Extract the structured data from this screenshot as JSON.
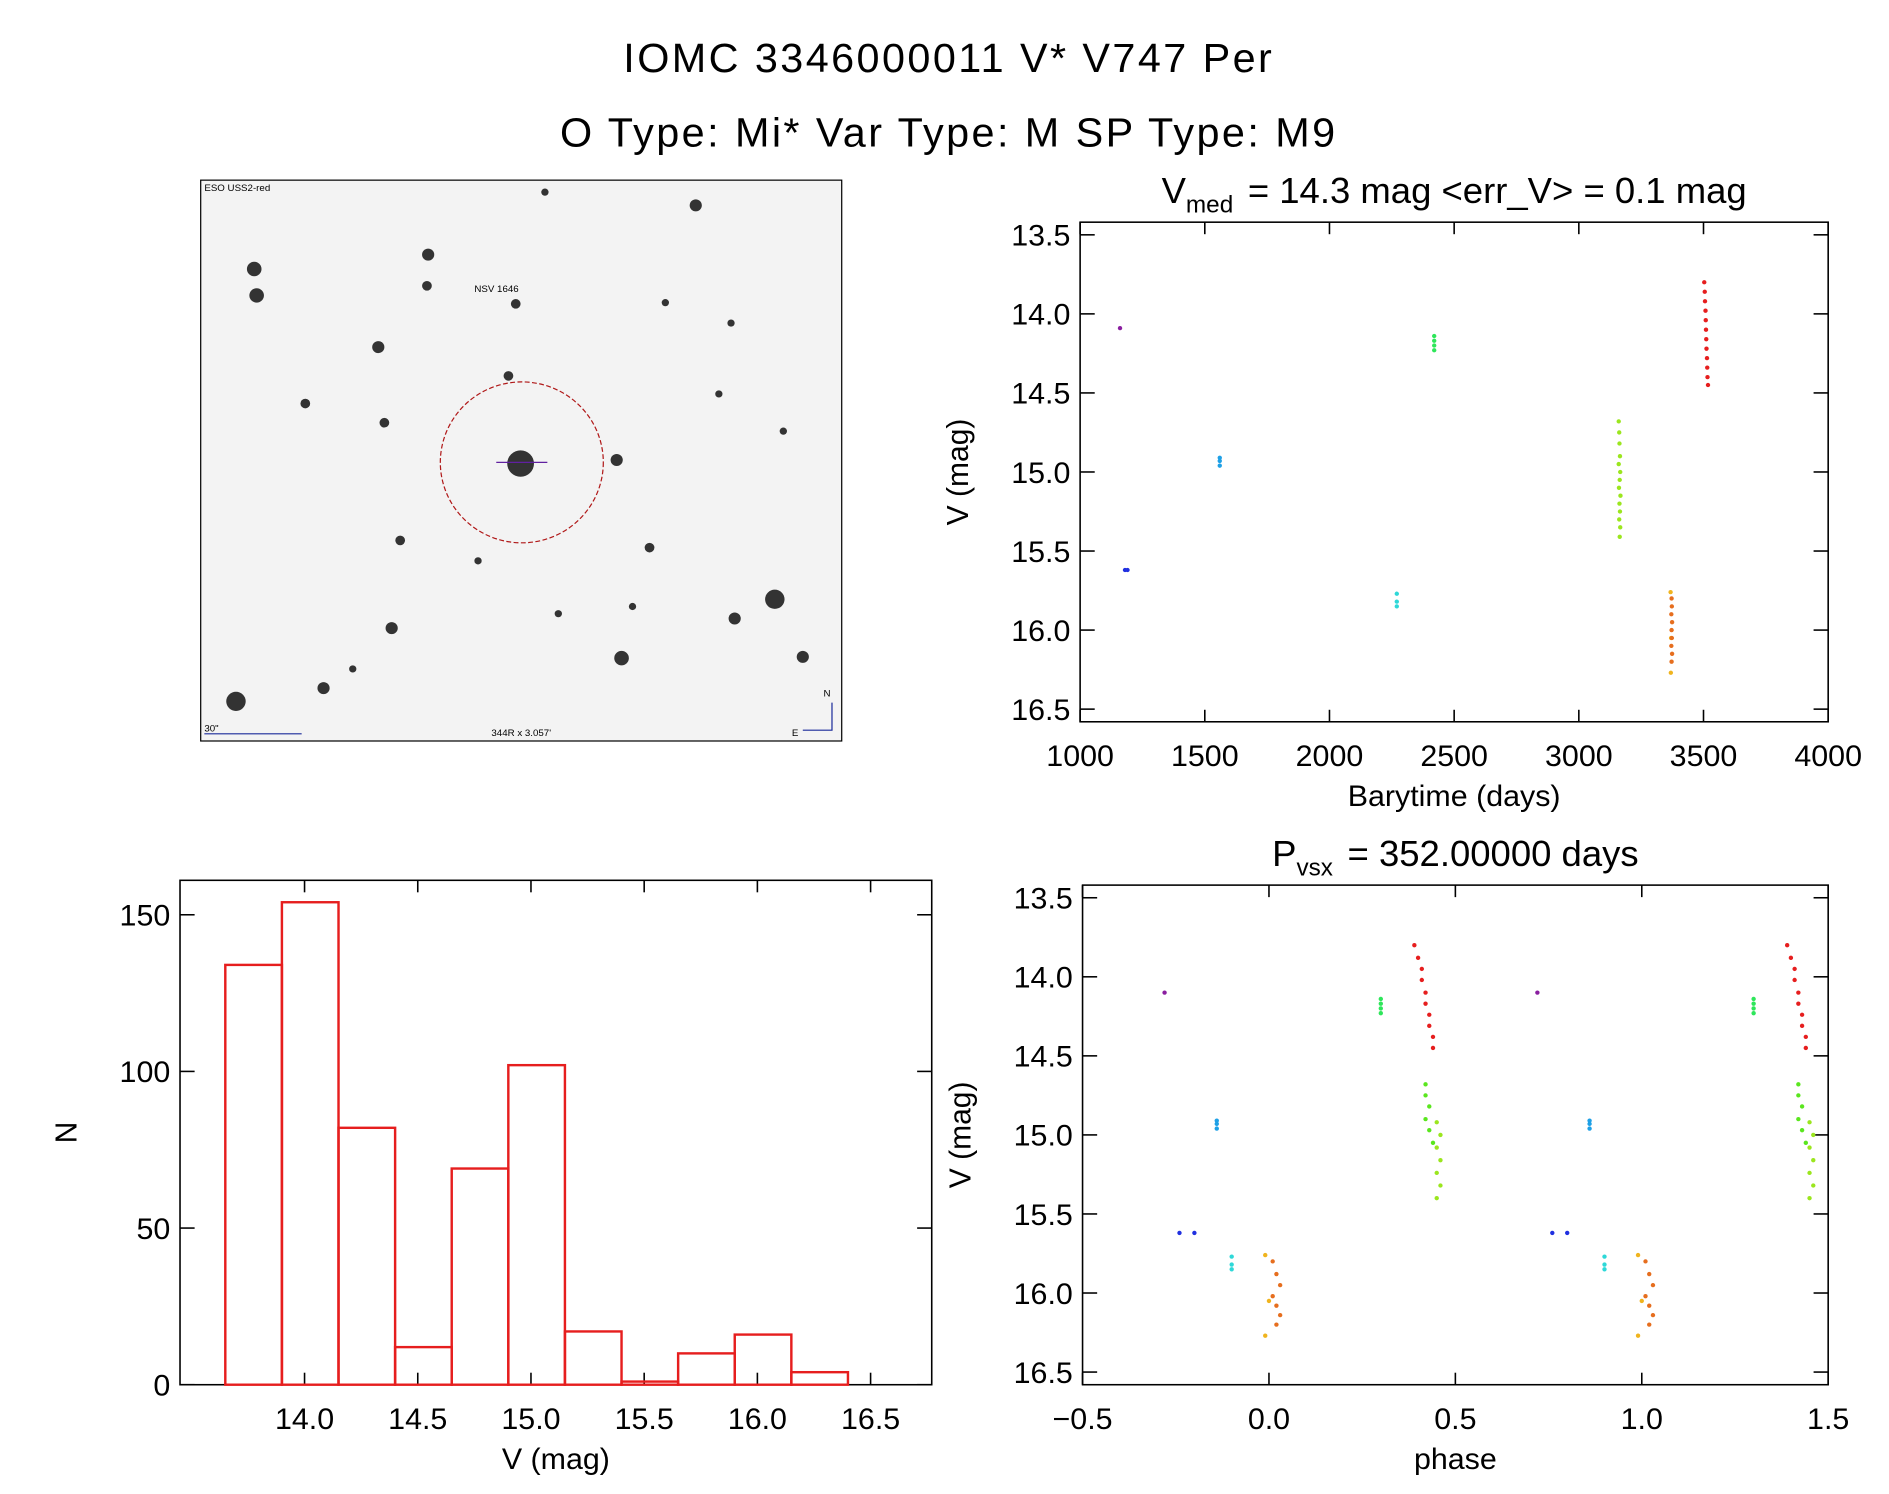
{
  "header": {
    "title": "IOMC 3346000011   V* V747 Per",
    "subtitle": "O Type: Mi*  Var Type: M  SP Type: M9"
  },
  "finder": {
    "survey": "ESO USS2-red",
    "object": "NSV 1646",
    "scale": "30\"",
    "field": "344R x 3.057'",
    "north": "N",
    "east": "E"
  },
  "chart_data": [
    {
      "type": "scatter",
      "title": [
        "V",
        "med",
        "= 14.3 mag <err_V> = 0.1 mag"
      ],
      "x_label": "Barytime (days)",
      "y_label": "V (mag)",
      "xlim": [
        1000,
        4000
      ],
      "xticks": [
        1000,
        1500,
        2000,
        2500,
        3000,
        3500,
        4000
      ],
      "ylim": [
        16.58,
        13.42
      ],
      "yticks": [
        13.5,
        {
          "value": 14,
          "label": "14.0"
        },
        14.5,
        {
          "value": 15,
          "label": "15.0"
        },
        15.5,
        {
          "value": 16,
          "label": "16.0"
        },
        16.5
      ],
      "series": [
        {
          "color": "#8a1ea0",
          "x": [
            1160
          ],
          "values": [
            14.09
          ]
        },
        {
          "color": "#2030e0",
          "x": [
            1180,
            1190
          ],
          "values": [
            15.62,
            15.62
          ]
        },
        {
          "color": "#1ea0e6",
          "x": [
            1560,
            1560,
            1560
          ],
          "values": [
            14.91,
            14.93,
            14.96
          ]
        },
        {
          "color": "#2ed8d8",
          "x": [
            2270,
            2270,
            2270
          ],
          "values": [
            15.77,
            15.82,
            15.85
          ]
        },
        {
          "color": "#2ee65a",
          "x": [
            2420,
            2420,
            2420,
            2420
          ],
          "values": [
            14.14,
            14.17,
            14.2,
            14.23
          ]
        },
        {
          "color": "#9be61e",
          "x": [
            3160,
            3162,
            3163,
            3165,
            3160,
            3166,
            3164,
            3161,
            3167,
            3163,
            3165,
            3162,
            3166,
            3164
          ],
          "values": [
            14.68,
            14.75,
            14.82,
            14.9,
            14.95,
            15.0,
            15.05,
            15.1,
            15.15,
            15.2,
            15.25,
            15.3,
            15.35,
            15.41
          ]
        },
        {
          "color": "#f0b41e",
          "x": [
            3368,
            3370,
            3369
          ],
          "values": [
            15.76,
            16.05,
            16.27
          ]
        },
        {
          "color": "#e66e1e",
          "x": [
            3372,
            3373,
            3371,
            3374,
            3372,
            3373,
            3371,
            3374,
            3372
          ],
          "values": [
            15.8,
            15.85,
            15.9,
            15.95,
            16.0,
            16.05,
            16.1,
            16.15,
            16.2
          ]
        },
        {
          "color": "#e61e1e",
          "x": [
            3503,
            3505,
            3506,
            3508,
            3509,
            3510,
            3511,
            3512,
            3514,
            3515,
            3516,
            3518
          ],
          "values": [
            13.8,
            13.86,
            13.92,
            13.98,
            14.04,
            14.1,
            14.16,
            14.22,
            14.28,
            14.34,
            14.4,
            14.45
          ]
        }
      ]
    },
    {
      "type": "scatter",
      "title": [
        "P",
        "vsx",
        "= 352.00000 days"
      ],
      "x_label": "phase",
      "y_label": "V (mag)",
      "xlim": [
        -0.5,
        1.5
      ],
      "xticks": [
        {
          "value": -0.5,
          "label": "−0.5"
        },
        {
          "value": 0,
          "label": "0.0"
        },
        0.5,
        {
          "value": 1,
          "label": "1.0"
        },
        1.5
      ],
      "ylim": [
        16.58,
        13.42
      ],
      "yticks": [
        13.5,
        {
          "value": 14,
          "label": "14.0"
        },
        14.5,
        {
          "value": 15,
          "label": "15.0"
        },
        15.5,
        {
          "value": 16,
          "label": "16.0"
        },
        16.5
      ],
      "series": [
        {
          "color": "#8a1ea0",
          "x": [
            -0.28,
            0.72
          ],
          "values": [
            14.1,
            14.1
          ]
        },
        {
          "color": "#2030e0",
          "x": [
            -0.24,
            -0.2,
            0.76,
            0.8
          ],
          "values": [
            15.62,
            15.62,
            15.62,
            15.62
          ]
        },
        {
          "color": "#1ea0e6",
          "x": [
            -0.14,
            -0.14,
            -0.14,
            0.86,
            0.86,
            0.86
          ],
          "values": [
            14.91,
            14.93,
            14.96,
            14.91,
            14.93,
            14.96
          ]
        },
        {
          "color": "#2ed8d8",
          "x": [
            -0.1,
            -0.1,
            -0.1,
            0.9,
            0.9,
            0.9
          ],
          "values": [
            15.77,
            15.82,
            15.85,
            15.77,
            15.82,
            15.85
          ]
        },
        {
          "color": "#2ee65a",
          "x": [
            0.3,
            0.3,
            0.3,
            0.3,
            1.3,
            1.3,
            1.3,
            1.3
          ],
          "values": [
            14.14,
            14.17,
            14.2,
            14.23,
            14.14,
            14.17,
            14.2,
            14.23
          ]
        },
        {
          "color": "#5ae61e",
          "x": [
            0.42,
            0.42,
            0.43,
            0.42,
            0.43,
            0.44,
            1.42,
            1.42,
            1.43,
            1.42,
            1.43,
            1.44
          ],
          "values": [
            14.68,
            14.75,
            14.82,
            14.9,
            14.97,
            15.05,
            14.68,
            14.75,
            14.82,
            14.9,
            14.97,
            15.05
          ]
        },
        {
          "color": "#9be61e",
          "x": [
            0.45,
            0.46,
            0.45,
            0.46,
            0.45,
            0.46,
            0.45,
            1.45,
            1.46,
            1.45,
            1.46,
            1.45,
            1.46,
            1.45
          ],
          "values": [
            14.92,
            15.0,
            15.08,
            15.16,
            15.24,
            15.32,
            15.4,
            14.92,
            15.0,
            15.08,
            15.16,
            15.24,
            15.32,
            15.4
          ]
        },
        {
          "color": "#f0b41e",
          "x": [
            -0.01,
            0.0,
            -0.01,
            0.99,
            1.0,
            0.99
          ],
          "values": [
            15.76,
            16.05,
            16.27,
            15.76,
            16.05,
            16.27
          ]
        },
        {
          "color": "#e66e1e",
          "x": [
            0.01,
            0.02,
            0.03,
            0.01,
            0.02,
            0.03,
            0.02,
            1.01,
            1.02,
            1.03,
            1.01,
            1.02,
            1.03,
            1.02
          ],
          "values": [
            15.8,
            15.88,
            15.95,
            16.02,
            16.08,
            16.14,
            16.2,
            15.8,
            15.88,
            15.95,
            16.02,
            16.08,
            16.14,
            16.2
          ]
        },
        {
          "color": "#e61e1e",
          "x": [
            0.39,
            0.4,
            0.41,
            0.41,
            0.42,
            0.42,
            0.43,
            0.43,
            0.44,
            0.44,
            1.39,
            1.4,
            1.41,
            1.41,
            1.42,
            1.42,
            1.43,
            1.43,
            1.44,
            1.44
          ],
          "values": [
            13.8,
            13.88,
            13.95,
            14.02,
            14.1,
            14.17,
            14.24,
            14.31,
            14.38,
            14.45,
            13.8,
            13.88,
            13.95,
            14.02,
            14.1,
            14.17,
            14.24,
            14.31,
            14.38,
            14.45
          ]
        }
      ]
    },
    {
      "type": "histogram",
      "x_label": "V (mag)",
      "y_label": "N",
      "color": "#e61e1e",
      "bins": [
        13.65,
        13.9,
        14.15,
        14.4,
        14.65,
        14.9,
        15.15,
        15.4,
        15.65,
        15.9,
        16.15,
        16.4
      ],
      "values": [
        134,
        154,
        82,
        12,
        69,
        102,
        17,
        1,
        10,
        16,
        4
      ],
      "xlim": [
        13.45,
        16.77
      ],
      "xticks": [
        {
          "value": 14,
          "label": "14.0"
        },
        14.5,
        {
          "value": 15,
          "label": "15.0"
        },
        15.5,
        {
          "value": 16,
          "label": "16.0"
        },
        16.5
      ],
      "ylim": [
        0,
        161
      ],
      "yticks": [
        0,
        50,
        100,
        150
      ]
    }
  ]
}
